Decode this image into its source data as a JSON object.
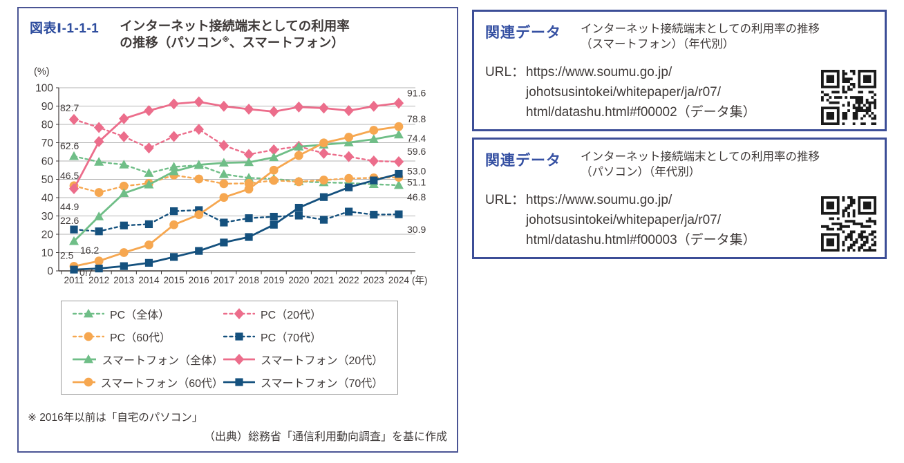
{
  "figure": {
    "label": "図表Ⅰ-1-1-1",
    "title_line1": "インターネット接続端末としての利用率",
    "title_line2_pre": "の推移（パソコン",
    "title_line2_sup": "※",
    "title_line2_post": "、スマートフォン）",
    "footnote": "※ 2016年以前は「自宅のパソコン」",
    "source": "（出典）総務省「通信利用動向調査」を基に作成"
  },
  "chart_data": {
    "type": "line",
    "x": [
      2011,
      2012,
      2013,
      2014,
      2015,
      2016,
      2017,
      2018,
      2019,
      2020,
      2021,
      2022,
      2023,
      2024
    ],
    "x_unit": "(年)",
    "y_unit": "(%)",
    "ylim": [
      0,
      100
    ],
    "y_step": 10,
    "grid": true,
    "legend_position": "bottom-box",
    "colors": {
      "green": "#6fbe87",
      "pink": "#ec6d8b",
      "orange": "#f6a750",
      "navy": "#15517e"
    },
    "series": [
      {
        "id": "pc_all",
        "name": "PC（全体）",
        "color": "green",
        "marker": "triangle",
        "line": "dashed",
        "values": [
          62.6,
          59.5,
          58.0,
          53.4,
          56.8,
          57.7,
          52.8,
          50.8,
          50.3,
          48.8,
          48.3,
          48.0,
          47.3,
          46.8
        ],
        "label_start": "62.6",
        "label_end": "46.8"
      },
      {
        "id": "pc_20",
        "name": "PC（20代）",
        "color": "pink",
        "marker": "diamond",
        "line": "dashed",
        "values": [
          82.7,
          78.3,
          73.3,
          67.1,
          73.4,
          77.3,
          68.5,
          63.6,
          66.1,
          68.0,
          64.2,
          62.4,
          60.0,
          59.6
        ],
        "label_start": "82.7",
        "label_end": "59.6"
      },
      {
        "id": "pc_60",
        "name": "PC（60代）",
        "color": "orange",
        "marker": "circle",
        "line": "dashed",
        "values": [
          46.5,
          42.8,
          46.3,
          47.8,
          52.3,
          50.2,
          47.6,
          47.8,
          49.4,
          48.7,
          49.6,
          50.5,
          50.8,
          51.1
        ],
        "label_start": "46.5",
        "label_end": "51.1"
      },
      {
        "id": "pc_70",
        "name": "PC（70代）",
        "color": "navy",
        "marker": "square",
        "line": "dashed",
        "values": [
          22.6,
          21.6,
          24.8,
          25.5,
          32.6,
          33.2,
          26.4,
          28.8,
          29.6,
          30.2,
          27.9,
          32.4,
          30.7,
          30.9
        ],
        "label_start": "22.6",
        "label_end": "30.9"
      },
      {
        "id": "sp_all",
        "name": "スマートフォン（全体）",
        "color": "green",
        "marker": "triangle",
        "line": "solid",
        "values": [
          16.2,
          29.7,
          42.4,
          47.1,
          54.3,
          57.9,
          59.0,
          59.3,
          62.0,
          67.8,
          68.9,
          70.1,
          71.9,
          74.4
        ],
        "label_start": "16.2",
        "label_end": "74.4"
      },
      {
        "id": "sp_20",
        "name": "スマートフォン（20代）",
        "color": "pink",
        "marker": "diamond",
        "line": "solid",
        "values": [
          44.9,
          70.6,
          83.1,
          87.5,
          91.2,
          92.3,
          89.9,
          88.3,
          87.0,
          89.5,
          88.9,
          87.5,
          89.9,
          91.6
        ],
        "label_start": "44.9",
        "label_end": "91.6"
      },
      {
        "id": "sp_60",
        "name": "スマートフォン（60代）",
        "color": "orange",
        "marker": "circle",
        "line": "solid",
        "values": [
          2.5,
          5.4,
          10.0,
          14.2,
          25.2,
          30.7,
          40.1,
          44.7,
          55.0,
          63.0,
          69.9,
          73.0,
          76.8,
          78.8
        ],
        "label_start": "2.5",
        "label_end": "78.8"
      },
      {
        "id": "sp_70",
        "name": "スマートフォン（70代）",
        "color": "navy",
        "marker": "square",
        "line": "solid",
        "values": [
          0.7,
          1.3,
          2.6,
          4.4,
          7.6,
          10.9,
          15.5,
          18.5,
          25.2,
          34.5,
          40.3,
          45.6,
          49.4,
          53.0
        ],
        "label_start": "0.7",
        "label_end": "53.0"
      }
    ]
  },
  "related_data": [
    {
      "label": "関連データ",
      "title_line1": "インターネット接続端末としての利用率の推移",
      "title_line2": "（スマートフォン）（年代別）",
      "url_label": "URL：",
      "url_lines": [
        "https://www.soumu.go.jp/",
        "johotsusintokei/whitepaper/ja/r07/",
        "html/datashu.html#f00002（データ集）"
      ]
    },
    {
      "label": "関連データ",
      "title_line1": "インターネット接続端末としての利用率の推移",
      "title_line2": "（パソコン）（年代別）",
      "url_label": "URL：",
      "url_lines": [
        "https://www.soumu.go.jp/",
        "johotsusintokei/whitepaper/ja/r07/",
        "html/datashu.html#f00003（データ集）"
      ]
    }
  ]
}
